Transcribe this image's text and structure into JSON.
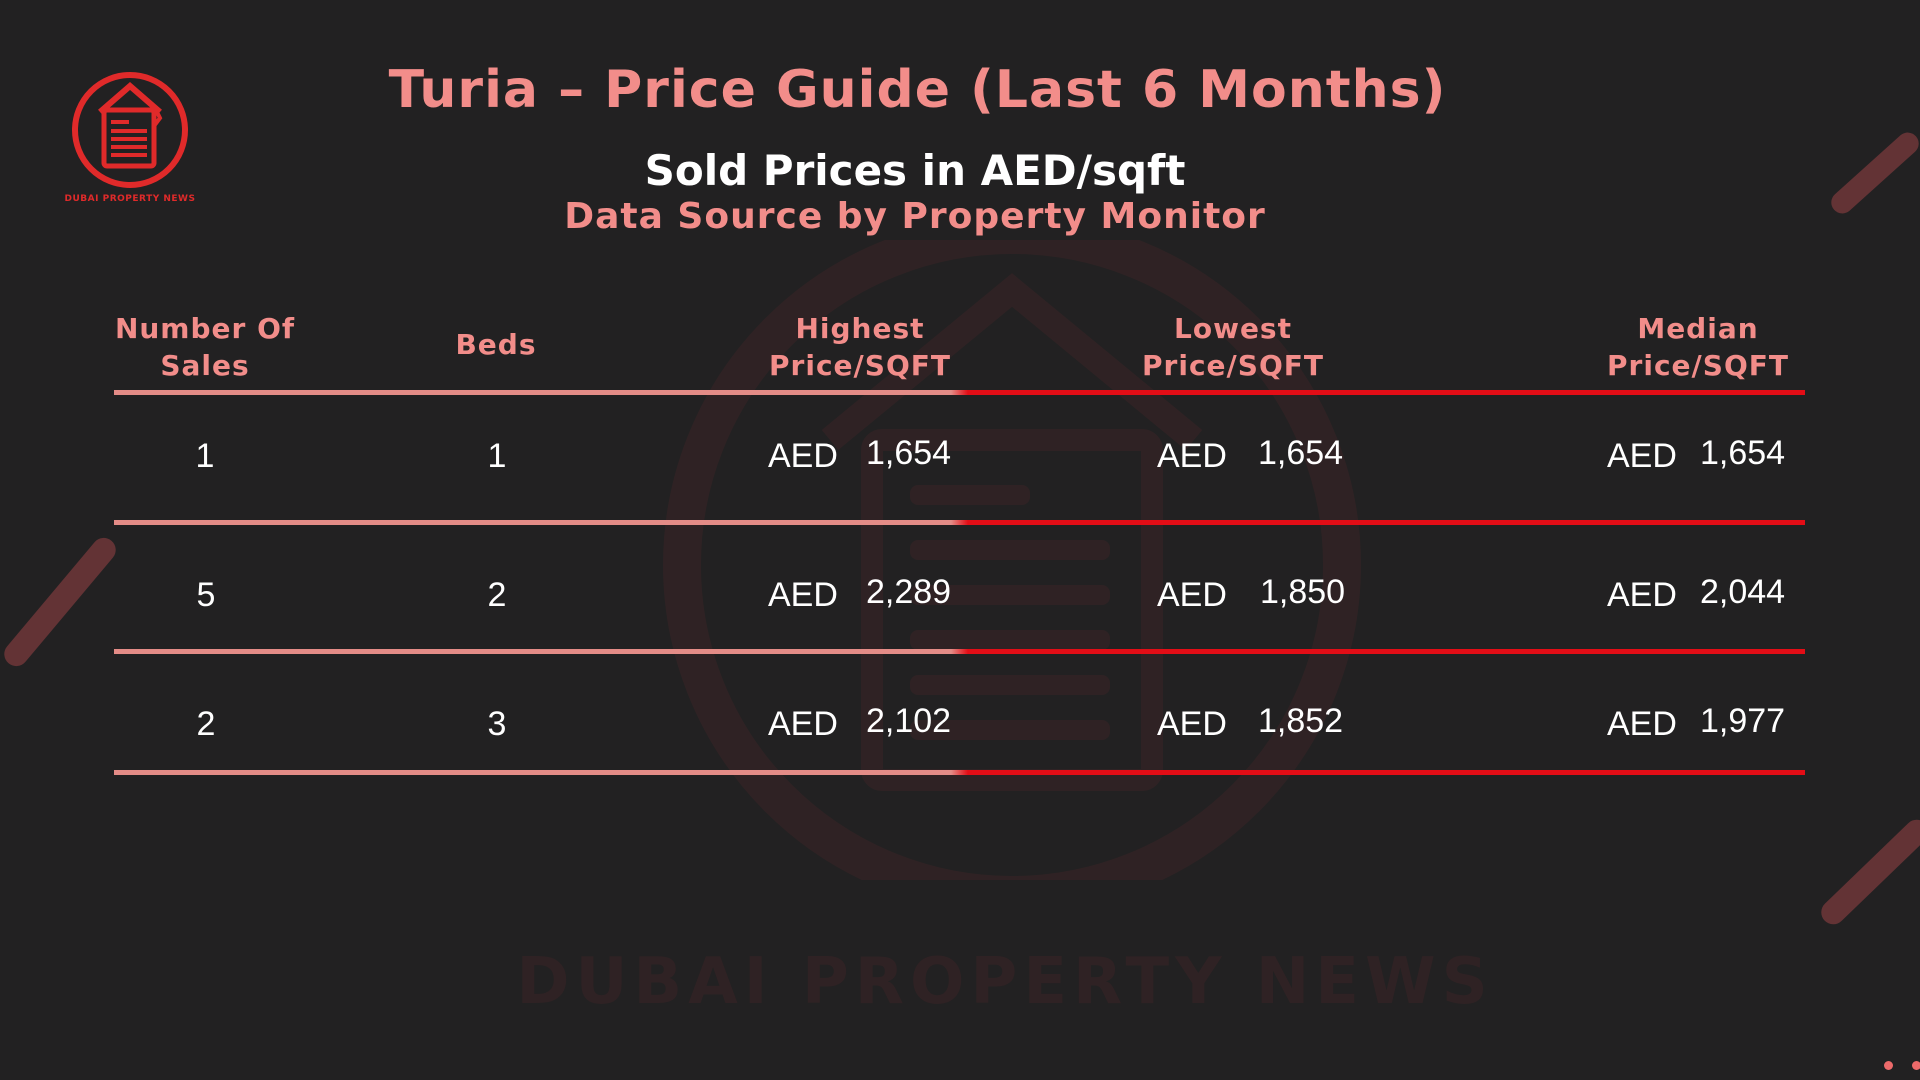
{
  "brand": {
    "logo_text": "DUBAI PROPERTY NEWS",
    "watermark_text": "DUBAI PROPERTY NEWS"
  },
  "header": {
    "title": "Turia – Price Guide (Last 6 Months)",
    "subtitle": "Sold Prices in AED/sqft",
    "source": "Data Source by Property Monitor"
  },
  "table": {
    "headers": {
      "sales": [
        "Number Of",
        "Sales"
      ],
      "beds": [
        "Beds"
      ],
      "highest": [
        "Highest",
        "Price/SQFT"
      ],
      "lowest": [
        "Lowest",
        "Price/SQFT"
      ],
      "median": [
        "Median",
        "Price/SQFT"
      ]
    },
    "rows": [
      {
        "sales": "1",
        "beds": "1",
        "highest": {
          "cur": "AED",
          "amt": "1,654"
        },
        "lowest": {
          "cur": "AED",
          "amt": "1,654"
        },
        "median": {
          "cur": "AED",
          "amt": "1,654"
        }
      },
      {
        "sales": "5",
        "beds": "2",
        "highest": {
          "cur": "AED",
          "amt": "2,289"
        },
        "lowest": {
          "cur": "AED",
          "amt": "1,850"
        },
        "median": {
          "cur": "AED",
          "amt": "2,044"
        }
      },
      {
        "sales": "2",
        "beds": "3",
        "highest": {
          "cur": "AED",
          "amt": "2,102"
        },
        "lowest": {
          "cur": "AED",
          "amt": "1,852"
        },
        "median": {
          "cur": "AED",
          "amt": "1,977"
        }
      }
    ]
  },
  "colors": {
    "background": "#222122",
    "accent": "#f28d8a",
    "rule_red": "#e30d16",
    "rule_pink": "#e48c87"
  }
}
